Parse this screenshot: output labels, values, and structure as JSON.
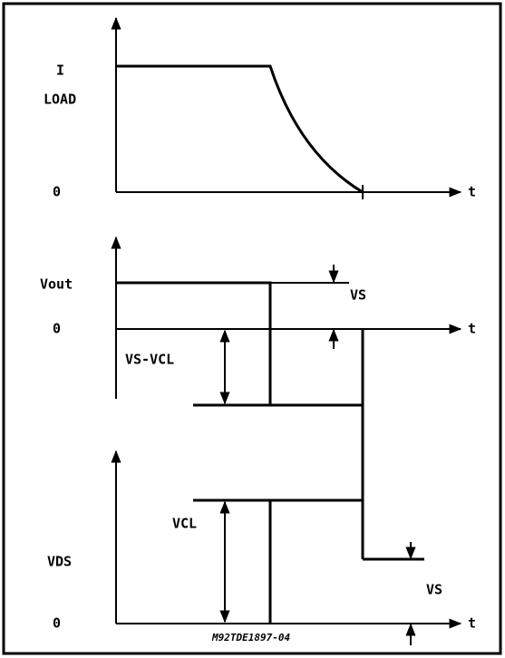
{
  "top": {
    "y_label_top": "I",
    "y_label": "LOAD",
    "zero": "0",
    "x_label": "t"
  },
  "middle": {
    "y_label": "Vout",
    "zero": "0",
    "x_label": "t",
    "vs": "VS",
    "vs_vcl": "VS-VCL"
  },
  "bottom": {
    "y_label": "VDS",
    "zero": "0",
    "x_label": "t",
    "vcl": "VCL",
    "vs": "VS"
  },
  "caption": "M92TDE1897-04"
}
